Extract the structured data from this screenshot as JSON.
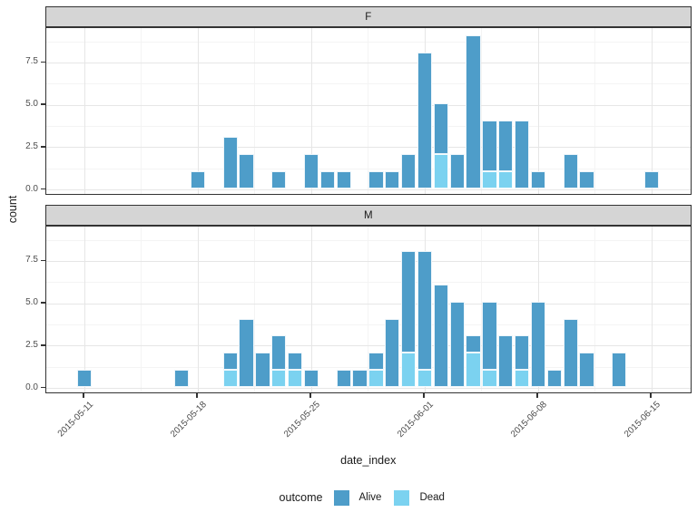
{
  "chart_data": {
    "type": "bar",
    "stacked": true,
    "orientation": "vertical",
    "title": "",
    "xlabel": "date_index",
    "ylabel": "count",
    "facet_values": [
      "F",
      "M"
    ],
    "x_ticks": [
      "2015-05-11",
      "2015-05-18",
      "2015-05-25",
      "2015-06-01",
      "2015-06-08",
      "2015-06-15"
    ],
    "y_ticks": [
      "0.0",
      "2.5",
      "5.0",
      "7.5"
    ],
    "y_minor_ticks": [
      1.25,
      3.75,
      6.25,
      8.75
    ],
    "ylim": [
      0,
      9.6
    ],
    "grid": true,
    "legend": {
      "title": "outcome",
      "position": "bottom",
      "items": [
        {
          "label": "Alive",
          "color": "#4e9dc9"
        },
        {
          "label": "Dead",
          "color": "#7bd2f0"
        }
      ]
    },
    "facets": [
      {
        "label": "F",
        "bars": [
          {
            "date": "2015-05-18",
            "Alive": 1,
            "Dead": 0
          },
          {
            "date": "2015-05-20",
            "Alive": 3,
            "Dead": 0
          },
          {
            "date": "2015-05-21",
            "Alive": 2,
            "Dead": 0
          },
          {
            "date": "2015-05-23",
            "Alive": 1,
            "Dead": 0
          },
          {
            "date": "2015-05-25",
            "Alive": 2,
            "Dead": 0
          },
          {
            "date": "2015-05-26",
            "Alive": 1,
            "Dead": 0
          },
          {
            "date": "2015-05-27",
            "Alive": 1,
            "Dead": 0
          },
          {
            "date": "2015-05-29",
            "Alive": 1,
            "Dead": 0
          },
          {
            "date": "2015-05-30",
            "Alive": 1,
            "Dead": 0
          },
          {
            "date": "2015-05-31",
            "Alive": 2,
            "Dead": 0
          },
          {
            "date": "2015-06-01",
            "Alive": 8,
            "Dead": 0
          },
          {
            "date": "2015-06-02",
            "Alive": 3,
            "Dead": 2
          },
          {
            "date": "2015-06-03",
            "Alive": 2,
            "Dead": 0
          },
          {
            "date": "2015-06-04",
            "Alive": 9,
            "Dead": 0
          },
          {
            "date": "2015-06-05",
            "Alive": 3,
            "Dead": 1
          },
          {
            "date": "2015-06-06",
            "Alive": 3,
            "Dead": 1
          },
          {
            "date": "2015-06-07",
            "Alive": 4,
            "Dead": 0
          },
          {
            "date": "2015-06-08",
            "Alive": 1,
            "Dead": 0
          },
          {
            "date": "2015-06-10",
            "Alive": 2,
            "Dead": 0
          },
          {
            "date": "2015-06-11",
            "Alive": 1,
            "Dead": 0
          },
          {
            "date": "2015-06-15",
            "Alive": 1,
            "Dead": 0
          }
        ]
      },
      {
        "label": "M",
        "bars": [
          {
            "date": "2015-05-11",
            "Alive": 1,
            "Dead": 0
          },
          {
            "date": "2015-05-17",
            "Alive": 1,
            "Dead": 0
          },
          {
            "date": "2015-05-20",
            "Alive": 1,
            "Dead": 1
          },
          {
            "date": "2015-05-21",
            "Alive": 4,
            "Dead": 0
          },
          {
            "date": "2015-05-22",
            "Alive": 2,
            "Dead": 0
          },
          {
            "date": "2015-05-23",
            "Alive": 2,
            "Dead": 1
          },
          {
            "date": "2015-05-24",
            "Alive": 1,
            "Dead": 1
          },
          {
            "date": "2015-05-25",
            "Alive": 1,
            "Dead": 0
          },
          {
            "date": "2015-05-27",
            "Alive": 1,
            "Dead": 0
          },
          {
            "date": "2015-05-28",
            "Alive": 1,
            "Dead": 0
          },
          {
            "date": "2015-05-29",
            "Alive": 1,
            "Dead": 1
          },
          {
            "date": "2015-05-30",
            "Alive": 4,
            "Dead": 0
          },
          {
            "date": "2015-05-31",
            "Alive": 6,
            "Dead": 2
          },
          {
            "date": "2015-06-01",
            "Alive": 7,
            "Dead": 1
          },
          {
            "date": "2015-06-02",
            "Alive": 6,
            "Dead": 0
          },
          {
            "date": "2015-06-03",
            "Alive": 5,
            "Dead": 0
          },
          {
            "date": "2015-06-04",
            "Alive": 1,
            "Dead": 2
          },
          {
            "date": "2015-06-05",
            "Alive": 4,
            "Dead": 1
          },
          {
            "date": "2015-06-06",
            "Alive": 3,
            "Dead": 0
          },
          {
            "date": "2015-06-07",
            "Alive": 2,
            "Dead": 1
          },
          {
            "date": "2015-06-08",
            "Alive": 5,
            "Dead": 0
          },
          {
            "date": "2015-06-09",
            "Alive": 1,
            "Dead": 0
          },
          {
            "date": "2015-06-10",
            "Alive": 4,
            "Dead": 0
          },
          {
            "date": "2015-06-11",
            "Alive": 2,
            "Dead": 0
          },
          {
            "date": "2015-06-13",
            "Alive": 2,
            "Dead": 0
          }
        ]
      }
    ]
  },
  "colors": {
    "alive": "#4e9dc9",
    "dead": "#7bd2f0",
    "strip_fill": "#d5d5d5",
    "panel_border": "#333333",
    "grid_major": "#e6e6e6",
    "grid_minor": "#f4f4f4",
    "tick_text": "#4d4d4d"
  }
}
